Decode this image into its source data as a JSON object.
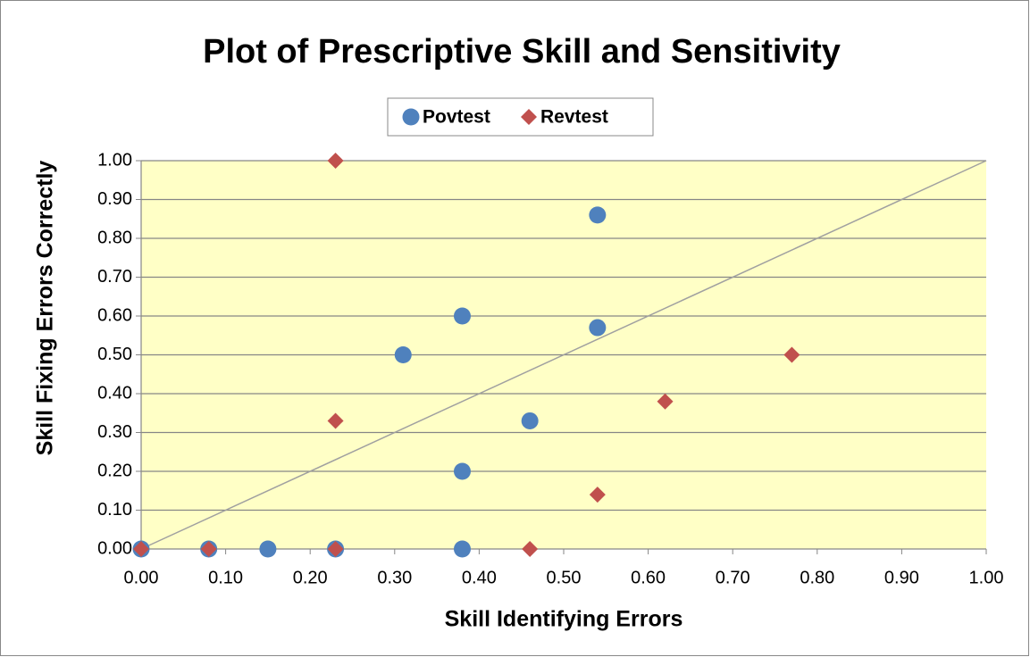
{
  "chart_data": {
    "type": "scatter",
    "title": "Plot of Prescriptive Skill and Sensitivity",
    "xlabel": "Skill Identifying Errors",
    "ylabel": "Skill Fixing Errors Correctly",
    "series": [
      {
        "name": "Povtest",
        "color": "#4f81bd",
        "marker": "circle",
        "x": [
          0,
          0.08,
          0.15,
          0.23,
          0.38,
          0.38,
          0.46,
          0.31,
          0.38,
          0.54,
          0.54
        ],
        "values": [
          0,
          0,
          0,
          0,
          0,
          0.2,
          0.33,
          0.5,
          0.6,
          0.57,
          0.86
        ]
      },
      {
        "name": "Revtest",
        "color": "#c0504d",
        "marker": "diamond",
        "x": [
          0,
          0.08,
          0.23,
          0.46,
          0.54,
          0.23,
          0.62,
          0.77,
          0.23
        ],
        "values": [
          0,
          0,
          0,
          0,
          0.14,
          0.33,
          0.38,
          0.5,
          1.0
        ]
      }
    ],
    "xlim": [
      0,
      1
    ],
    "ylim": [
      0,
      1
    ],
    "xticks": [
      {
        "value": 0,
        "label": "0.00"
      },
      {
        "value": 0.1,
        "label": "0.10"
      },
      {
        "value": 0.2,
        "label": "0.20"
      },
      {
        "value": 0.3,
        "label": "0.30"
      },
      {
        "value": 0.4,
        "label": "0.40"
      },
      {
        "value": 0.5,
        "label": "0.50"
      },
      {
        "value": 0.6,
        "label": "0.60"
      },
      {
        "value": 0.7,
        "label": "0.70"
      },
      {
        "value": 0.8,
        "label": "0.80"
      },
      {
        "value": 0.9,
        "label": "0.90"
      },
      {
        "value": 1,
        "label": "1.00"
      }
    ],
    "yticks": [
      {
        "value": 0,
        "label": "0.00"
      },
      {
        "value": 0.1,
        "label": "0.10"
      },
      {
        "value": 0.2,
        "label": "0.20"
      },
      {
        "value": 0.3,
        "label": "0.30"
      },
      {
        "value": 0.4,
        "label": "0.40"
      },
      {
        "value": 0.5,
        "label": "0.50"
      },
      {
        "value": 0.6,
        "label": "0.60"
      },
      {
        "value": 0.7,
        "label": "0.70"
      },
      {
        "value": 0.8,
        "label": "0.80"
      },
      {
        "value": 0.9,
        "label": "0.90"
      },
      {
        "value": 1,
        "label": "1.00"
      }
    ],
    "grid": true,
    "legend": "top"
  }
}
